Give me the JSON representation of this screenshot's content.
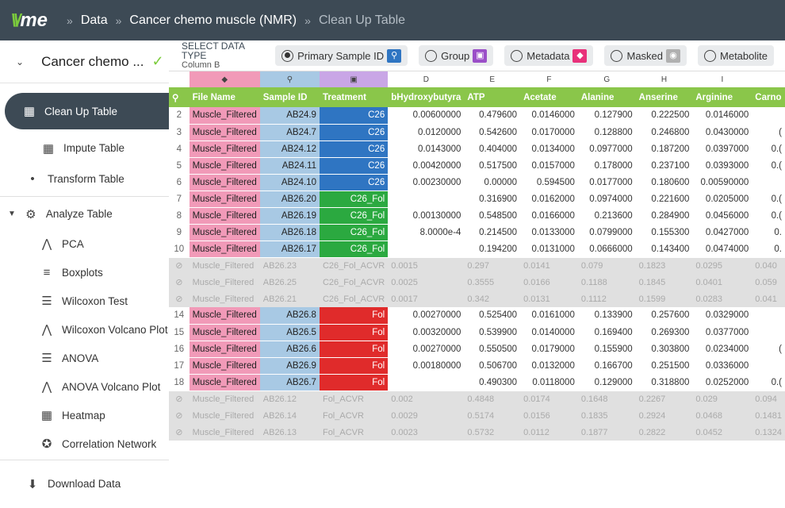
{
  "app": {
    "logo": "me",
    "logo_mark": "\\\\/"
  },
  "breadcrumb": [
    "Data",
    "Cancer chemo muscle (NMR)",
    "Clean Up Table"
  ],
  "sidebar": {
    "project": "Cancer chemo ...",
    "items": {
      "clean": "Clean Up Table",
      "impute": "Impute Table",
      "transform": "Transform Table",
      "analyze": "Analyze Table",
      "pca": "PCA",
      "boxplots": "Boxplots",
      "wilcoxon": "Wilcoxon Test",
      "wilcoxon_volcano": "Wilcoxon Volcano Plot",
      "anova": "ANOVA",
      "anova_volcano": "ANOVA Volcano Plot",
      "heatmap": "Heatmap",
      "corr": "Correlation Network",
      "download": "Download Data"
    }
  },
  "typebar": {
    "label": "SELECT DATA TYPE",
    "column": "Column B",
    "options": [
      "Primary Sample ID",
      "Group",
      "Metadata",
      "Masked",
      "Metabolite"
    ],
    "selected": "Primary Sample ID",
    "colors": {
      "primary": "#2f75c2",
      "group": "#9b4fc8",
      "metadata": "#e8317a",
      "masked": "#b0b0b0"
    }
  },
  "table": {
    "col_letters": [
      "",
      "",
      "",
      "",
      "D",
      "E",
      "F",
      "G",
      "H",
      "I",
      ""
    ],
    "headers": [
      "",
      "File Name",
      "Sample ID",
      "Treatment",
      "bHydroxybutyra",
      "ATP",
      "Acetate",
      "Alanine",
      "Anserine",
      "Arginine",
      "Carno"
    ],
    "rows": [
      {
        "n": "2",
        "file": "Muscle_Filtered",
        "id": "AB24.9",
        "grp": "C26",
        "g": "c26",
        "v": [
          "0.00600000",
          "0.479600",
          "0.0146000",
          "0.127900",
          "0.222500",
          "0.0146000",
          ""
        ]
      },
      {
        "n": "3",
        "file": "Muscle_Filtered",
        "id": "AB24.7",
        "grp": "C26",
        "g": "c26",
        "v": [
          "0.0120000",
          "0.542600",
          "0.0170000",
          "0.128800",
          "0.246800",
          "0.0430000",
          "("
        ]
      },
      {
        "n": "4",
        "file": "Muscle_Filtered",
        "id": "AB24.12",
        "grp": "C26",
        "g": "c26",
        "v": [
          "0.0143000",
          "0.404000",
          "0.0134000",
          "0.0977000",
          "0.187200",
          "0.0397000",
          "0.("
        ]
      },
      {
        "n": "5",
        "file": "Muscle_Filtered",
        "id": "AB24.11",
        "grp": "C26",
        "g": "c26",
        "v": [
          "0.00420000",
          "0.517500",
          "0.0157000",
          "0.178000",
          "0.237100",
          "0.0393000",
          "0.("
        ]
      },
      {
        "n": "6",
        "file": "Muscle_Filtered",
        "id": "AB24.10",
        "grp": "C26",
        "g": "c26",
        "v": [
          "0.00230000",
          "0.00000",
          "0.594500",
          "0.0177000",
          "0.180600",
          "0.00590000",
          ""
        ]
      },
      {
        "n": "7",
        "file": "Muscle_Filtered",
        "id": "AB26.20",
        "grp": "C26_Fol",
        "g": "fol26",
        "v": [
          "",
          "0.316900",
          "0.0162000",
          "0.0974000",
          "0.221600",
          "0.0205000",
          "0.("
        ]
      },
      {
        "n": "8",
        "file": "Muscle_Filtered",
        "id": "AB26.19",
        "grp": "C26_Fol",
        "g": "fol26",
        "v": [
          "0.00130000",
          "0.548500",
          "0.0166000",
          "0.213600",
          "0.284900",
          "0.0456000",
          "0.("
        ]
      },
      {
        "n": "9",
        "file": "Muscle_Filtered",
        "id": "AB26.18",
        "grp": "C26_Fol",
        "g": "fol26",
        "v": [
          "8.0000e-4",
          "0.214500",
          "0.0133000",
          "0.0799000",
          "0.155300",
          "0.0427000",
          "0."
        ]
      },
      {
        "n": "10",
        "file": "Muscle_Filtered",
        "id": "AB26.17",
        "grp": "C26_Fol",
        "g": "fol26",
        "v": [
          "",
          "0.194200",
          "0.0131000",
          "0.0666000",
          "0.143400",
          "0.0474000",
          "0."
        ]
      },
      {
        "n": "",
        "masked": true,
        "file": "Muscle_Filtered",
        "id": "AB26.23",
        "grp": "C26_Fol_ACVR",
        "v": [
          "0.0015",
          "0.297",
          "0.0141",
          "0.079",
          "0.1823",
          "0.0295",
          "0.040"
        ]
      },
      {
        "n": "",
        "masked": true,
        "file": "Muscle_Filtered",
        "id": "AB26.25",
        "grp": "C26_Fol_ACVR",
        "v": [
          "0.0025",
          "0.3555",
          "0.0166",
          "0.1188",
          "0.1845",
          "0.0401",
          "0.059"
        ]
      },
      {
        "n": "",
        "masked": true,
        "file": "Muscle_Filtered",
        "id": "AB26.21",
        "grp": "C26_Fol_ACVR",
        "v": [
          "0.0017",
          "0.342",
          "0.0131",
          "0.1112",
          "0.1599",
          "0.0283",
          "0.041"
        ]
      },
      {
        "n": "14",
        "file": "Muscle_Filtered",
        "id": "AB26.8",
        "grp": "Fol",
        "g": "fol",
        "v": [
          "0.00270000",
          "0.525400",
          "0.0161000",
          "0.133900",
          "0.257600",
          "0.0329000",
          ""
        ]
      },
      {
        "n": "15",
        "file": "Muscle_Filtered",
        "id": "AB26.5",
        "grp": "Fol",
        "g": "fol",
        "v": [
          "0.00320000",
          "0.539900",
          "0.0140000",
          "0.169400",
          "0.269300",
          "0.0377000",
          ""
        ]
      },
      {
        "n": "16",
        "file": "Muscle_Filtered",
        "id": "AB26.6",
        "grp": "Fol",
        "g": "fol",
        "v": [
          "0.00270000",
          "0.550500",
          "0.0179000",
          "0.155900",
          "0.303800",
          "0.0234000",
          "("
        ]
      },
      {
        "n": "17",
        "file": "Muscle_Filtered",
        "id": "AB26.9",
        "grp": "Fol",
        "g": "fol",
        "v": [
          "0.00180000",
          "0.506700",
          "0.0132000",
          "0.166700",
          "0.251500",
          "0.0336000",
          ""
        ]
      },
      {
        "n": "18",
        "file": "Muscle_Filtered",
        "id": "AB26.7",
        "grp": "Fol",
        "g": "fol",
        "v": [
          "",
          "0.490300",
          "0.0118000",
          "0.129000",
          "0.318800",
          "0.0252000",
          "0.("
        ]
      },
      {
        "n": "",
        "masked": true,
        "file": "Muscle_Filtered",
        "id": "AB26.12",
        "grp": "Fol_ACVR",
        "v": [
          "0.002",
          "0.4848",
          "0.0174",
          "0.1648",
          "0.2267",
          "0.029",
          "0.094"
        ]
      },
      {
        "n": "",
        "masked": true,
        "file": "Muscle_Filtered",
        "id": "AB26.14",
        "grp": "Fol_ACVR",
        "v": [
          "0.0029",
          "0.5174",
          "0.0156",
          "0.1835",
          "0.2924",
          "0.0468",
          "0.1481"
        ]
      },
      {
        "n": "",
        "masked": true,
        "file": "Muscle_Filtered",
        "id": "AB26.13",
        "grp": "Fol_ACVR",
        "v": [
          "0.0023",
          "0.5732",
          "0.0112",
          "0.1877",
          "0.2822",
          "0.0452",
          "0.1324"
        ]
      }
    ]
  }
}
